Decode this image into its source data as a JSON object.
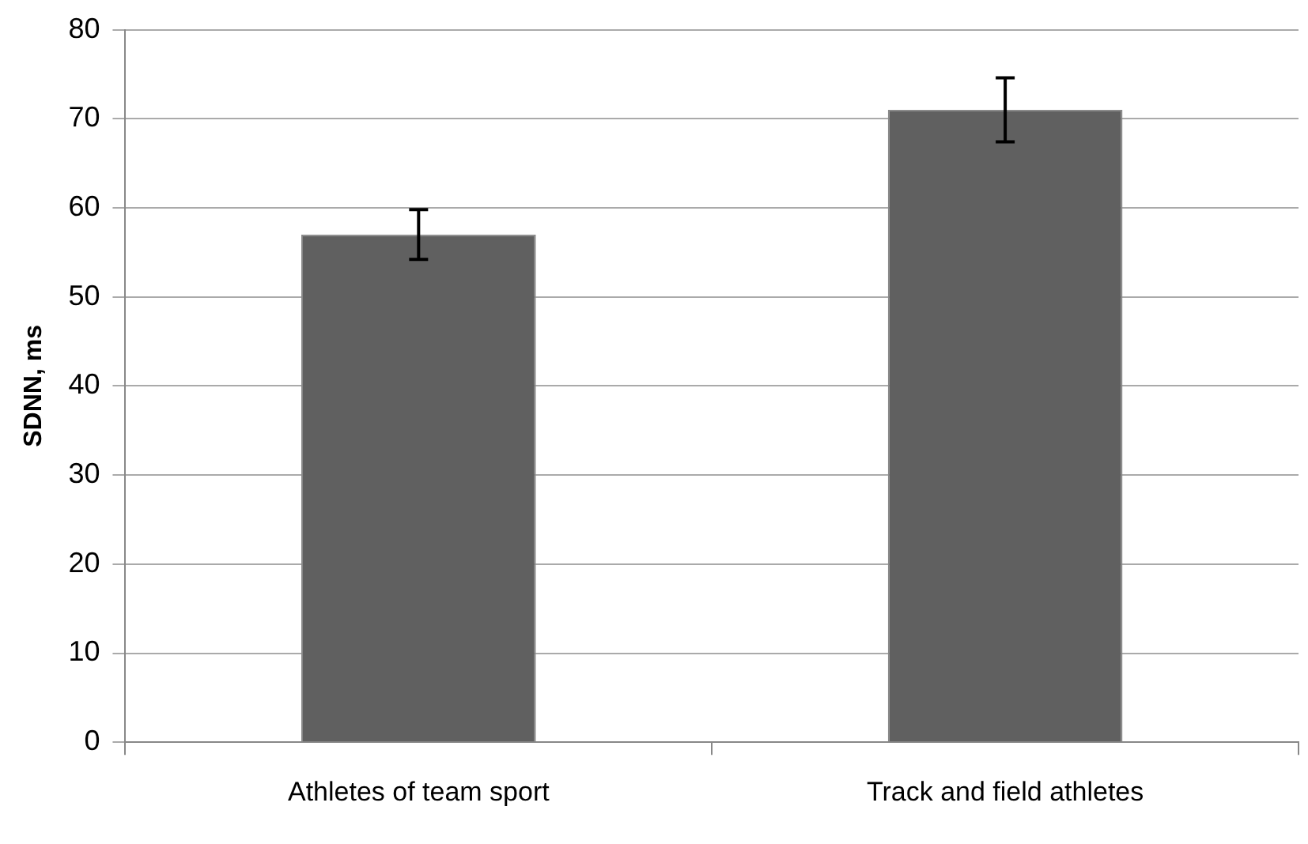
{
  "chart_data": {
    "type": "bar",
    "ylabel": "SDNN, ms",
    "categories": [
      "Athletes of team sport",
      "Track and field athletes"
    ],
    "values": [
      57,
      71
    ],
    "errors": [
      2.8,
      3.6
    ],
    "color": "#606060",
    "ylim": [
      0,
      80
    ],
    "yticks": [
      0,
      10,
      20,
      30,
      40,
      50,
      60,
      70,
      80
    ],
    "grid": "y",
    "legend": false
  }
}
